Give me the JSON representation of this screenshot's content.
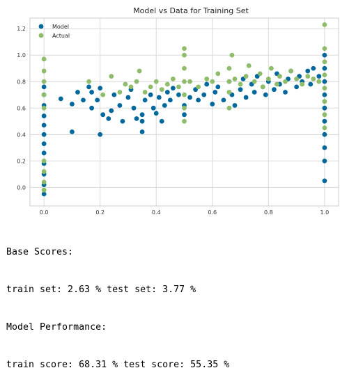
{
  "chart_data": {
    "type": "scatter",
    "title": "Model vs Data for Training Set",
    "xlabel": "",
    "ylabel": "",
    "xlim": [
      -0.05,
      1.05
    ],
    "ylim": [
      -0.14,
      1.28
    ],
    "xticks": [
      "0.0",
      "0.2",
      "0.4",
      "0.6",
      "0.8",
      "1.0"
    ],
    "xtick_values": [
      0.0,
      0.2,
      0.4,
      0.6,
      0.8,
      1.0
    ],
    "yticks": [
      "0.0",
      "0.2",
      "0.4",
      "0.6",
      "0.8",
      "1.0",
      "1.2"
    ],
    "ytick_values": [
      0.0,
      0.2,
      0.4,
      0.6,
      0.8,
      1.0,
      1.2
    ],
    "grid": true,
    "legend_position": "top-left",
    "series": [
      {
        "name": "Model",
        "color": "#00689c",
        "points": [
          [
            0.0,
            -0.05
          ],
          [
            0.0,
            0.02
          ],
          [
            0.0,
            0.1
          ],
          [
            0.0,
            0.18
          ],
          [
            0.0,
            0.26
          ],
          [
            0.0,
            0.33
          ],
          [
            0.0,
            0.4
          ],
          [
            0.0,
            0.47
          ],
          [
            0.0,
            0.54
          ],
          [
            0.0,
            0.62
          ],
          [
            0.0,
            0.7
          ],
          [
            0.0,
            0.76
          ],
          [
            0.06,
            0.67
          ],
          [
            0.1,
            0.42
          ],
          [
            0.1,
            0.63
          ],
          [
            0.12,
            0.72
          ],
          [
            0.14,
            0.66
          ],
          [
            0.16,
            0.76
          ],
          [
            0.17,
            0.6
          ],
          [
            0.17,
            0.72
          ],
          [
            0.19,
            0.66
          ],
          [
            0.2,
            0.75
          ],
          [
            0.2,
            0.4
          ],
          [
            0.21,
            0.55
          ],
          [
            0.23,
            0.52
          ],
          [
            0.24,
            0.58
          ],
          [
            0.25,
            0.7
          ],
          [
            0.27,
            0.62
          ],
          [
            0.28,
            0.5
          ],
          [
            0.3,
            0.68
          ],
          [
            0.31,
            0.74
          ],
          [
            0.32,
            0.6
          ],
          [
            0.33,
            0.52
          ],
          [
            0.35,
            0.42
          ],
          [
            0.35,
            0.5
          ],
          [
            0.35,
            0.55
          ],
          [
            0.36,
            0.66
          ],
          [
            0.38,
            0.7
          ],
          [
            0.39,
            0.6
          ],
          [
            0.4,
            0.56
          ],
          [
            0.41,
            0.68
          ],
          [
            0.42,
            0.5
          ],
          [
            0.43,
            0.62
          ],
          [
            0.44,
            0.72
          ],
          [
            0.45,
            0.66
          ],
          [
            0.46,
            0.75
          ],
          [
            0.48,
            0.7
          ],
          [
            0.5,
            0.55
          ],
          [
            0.5,
            0.62
          ],
          [
            0.52,
            0.68
          ],
          [
            0.54,
            0.74
          ],
          [
            0.55,
            0.66
          ],
          [
            0.57,
            0.7
          ],
          [
            0.58,
            0.78
          ],
          [
            0.6,
            0.63
          ],
          [
            0.61,
            0.72
          ],
          [
            0.62,
            0.76
          ],
          [
            0.64,
            0.66
          ],
          [
            0.66,
            0.8
          ],
          [
            0.67,
            0.7
          ],
          [
            0.68,
            0.62
          ],
          [
            0.7,
            0.74
          ],
          [
            0.71,
            0.82
          ],
          [
            0.72,
            0.68
          ],
          [
            0.74,
            0.78
          ],
          [
            0.75,
            0.72
          ],
          [
            0.76,
            0.84
          ],
          [
            0.78,
            0.76
          ],
          [
            0.79,
            0.7
          ],
          [
            0.8,
            0.8
          ],
          [
            0.82,
            0.74
          ],
          [
            0.83,
            0.86
          ],
          [
            0.84,
            0.78
          ],
          [
            0.86,
            0.72
          ],
          [
            0.87,
            0.82
          ],
          [
            0.88,
            0.88
          ],
          [
            0.9,
            0.76
          ],
          [
            0.91,
            0.84
          ],
          [
            0.92,
            0.8
          ],
          [
            0.94,
            0.88
          ],
          [
            0.95,
            0.78
          ],
          [
            0.96,
            0.9
          ],
          [
            0.98,
            0.84
          ],
          [
            1.0,
            0.05
          ],
          [
            1.0,
            0.2
          ],
          [
            1.0,
            0.3
          ],
          [
            1.0,
            0.4
          ],
          [
            1.0,
            0.5
          ],
          [
            1.0,
            0.6
          ],
          [
            1.0,
            0.7
          ],
          [
            1.0,
            0.8
          ],
          [
            1.0,
            0.9
          ],
          [
            1.0,
            1.0
          ]
        ]
      },
      {
        "name": "Actual",
        "color": "#8fbc6a",
        "points": [
          [
            0.0,
            -0.02
          ],
          [
            0.0,
            0.04
          ],
          [
            0.0,
            0.12
          ],
          [
            0.0,
            0.2
          ],
          [
            0.0,
            0.6
          ],
          [
            0.0,
            0.7
          ],
          [
            0.0,
            0.8
          ],
          [
            0.0,
            0.88
          ],
          [
            0.0,
            0.97
          ],
          [
            0.16,
            0.8
          ],
          [
            0.21,
            0.7
          ],
          [
            0.24,
            0.84
          ],
          [
            0.27,
            0.72
          ],
          [
            0.29,
            0.78
          ],
          [
            0.31,
            0.76
          ],
          [
            0.33,
            0.8
          ],
          [
            0.34,
            0.88
          ],
          [
            0.36,
            0.72
          ],
          [
            0.38,
            0.76
          ],
          [
            0.4,
            0.8
          ],
          [
            0.42,
            0.74
          ],
          [
            0.44,
            0.78
          ],
          [
            0.46,
            0.82
          ],
          [
            0.48,
            0.76
          ],
          [
            0.5,
            0.5
          ],
          [
            0.5,
            0.6
          ],
          [
            0.5,
            0.7
          ],
          [
            0.5,
            0.8
          ],
          [
            0.5,
            0.9
          ],
          [
            0.5,
            1.0
          ],
          [
            0.5,
            1.05
          ],
          [
            0.52,
            0.8
          ],
          [
            0.55,
            0.76
          ],
          [
            0.58,
            0.82
          ],
          [
            0.6,
            0.8
          ],
          [
            0.62,
            0.86
          ],
          [
            0.66,
            0.6
          ],
          [
            0.66,
            0.72
          ],
          [
            0.66,
            0.8
          ],
          [
            0.66,
            0.9
          ],
          [
            0.67,
            1.0
          ],
          [
            0.68,
            0.82
          ],
          [
            0.7,
            0.78
          ],
          [
            0.72,
            0.84
          ],
          [
            0.73,
            0.92
          ],
          [
            0.75,
            0.8
          ],
          [
            0.77,
            0.86
          ],
          [
            0.78,
            0.76
          ],
          [
            0.8,
            0.82
          ],
          [
            0.81,
            0.9
          ],
          [
            0.83,
            0.78
          ],
          [
            0.84,
            0.84
          ],
          [
            0.86,
            0.8
          ],
          [
            0.88,
            0.88
          ],
          [
            0.9,
            0.82
          ],
          [
            0.92,
            0.78
          ],
          [
            0.94,
            0.84
          ],
          [
            0.96,
            0.82
          ],
          [
            0.98,
            0.8
          ],
          [
            1.0,
            0.45
          ],
          [
            1.0,
            0.55
          ],
          [
            1.0,
            0.65
          ],
          [
            1.0,
            0.75
          ],
          [
            1.0,
            0.85
          ],
          [
            1.0,
            0.95
          ],
          [
            1.0,
            1.05
          ],
          [
            1.0,
            1.23
          ]
        ]
      }
    ]
  },
  "output": {
    "line1": "Base Scores:",
    "line2": "train set: 2.63 % test set: 3.77 %",
    "line3": "Model Performance:",
    "line4": "train score: 68.31 % test score: 55.35 %"
  }
}
